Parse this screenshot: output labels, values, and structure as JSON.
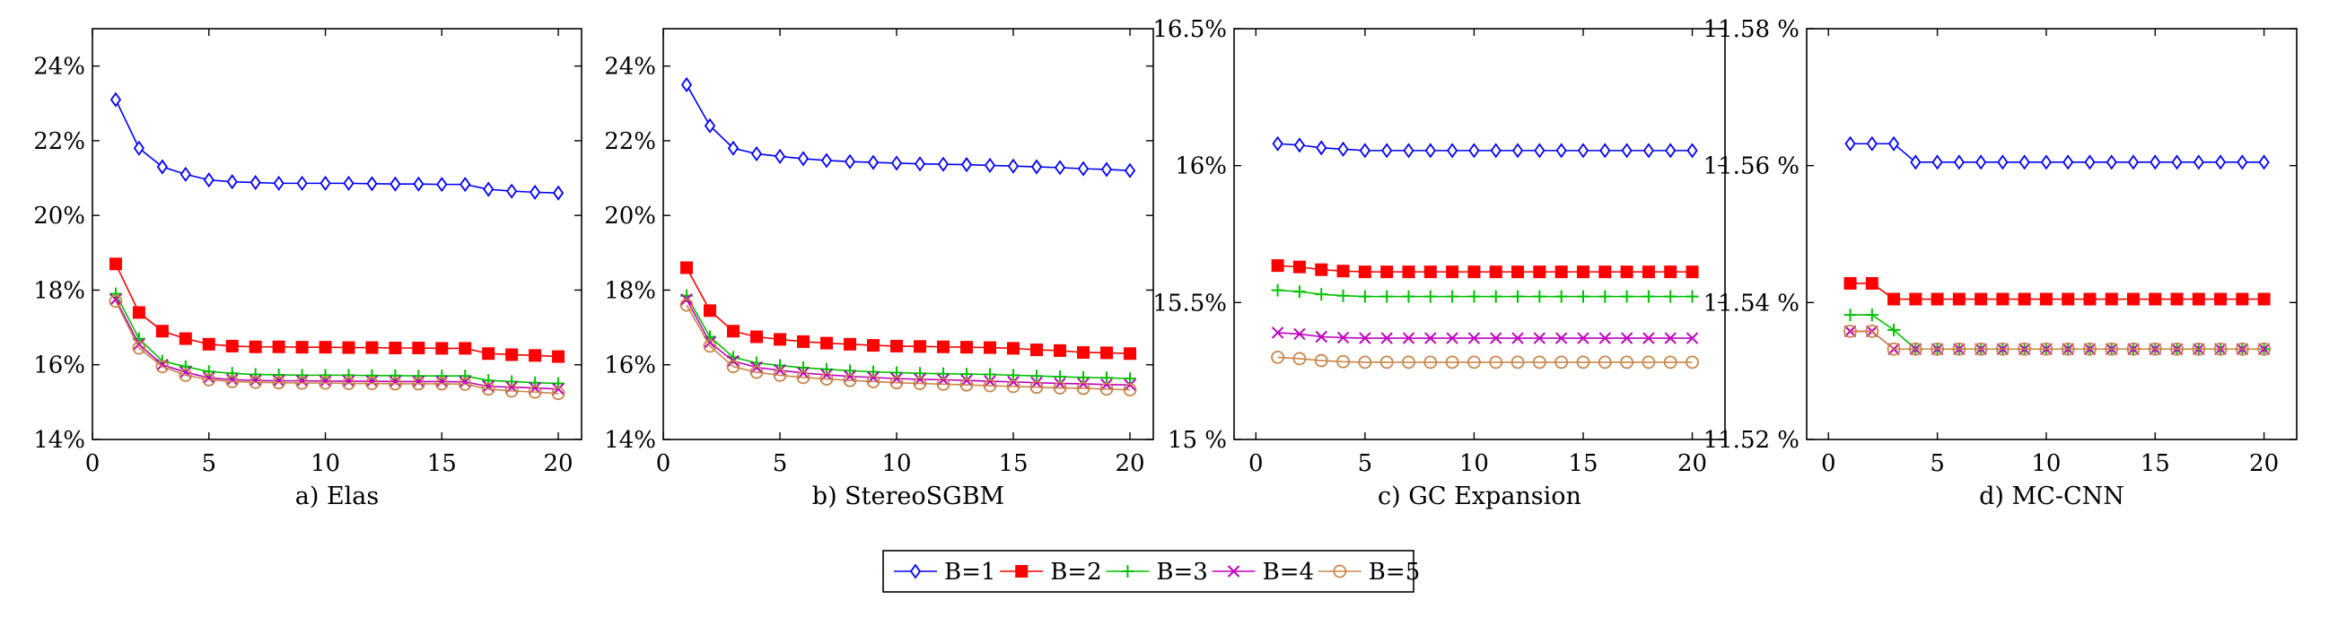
{
  "series_style": [
    {
      "name": "B=1",
      "color": "#0000ff",
      "marker": "diamond"
    },
    {
      "name": "B=2",
      "color": "#ff0000",
      "marker": "square"
    },
    {
      "name": "B=3",
      "color": "#00c000",
      "marker": "plus"
    },
    {
      "name": "B=4",
      "color": "#bf00bf",
      "marker": "cross"
    },
    {
      "name": "B=5",
      "color": "#c8864a",
      "marker": "circle"
    }
  ],
  "chart_data": [
    {
      "type": "line",
      "title": "a) Elas",
      "xlim": [
        0,
        21
      ],
      "xticks": [
        0,
        5,
        10,
        15,
        20
      ],
      "ylim": [
        14,
        25
      ],
      "yticks": [
        14,
        16,
        18,
        20,
        22,
        24
      ],
      "ytick_labels": [
        "14%",
        "16%",
        "18%",
        "20%",
        "22%",
        "24%"
      ],
      "x": [
        1,
        2,
        3,
        4,
        5,
        6,
        7,
        8,
        9,
        10,
        11,
        12,
        13,
        14,
        15,
        16,
        17,
        18,
        19,
        20
      ],
      "series": [
        {
          "name": "B=1",
          "values": [
            23.1,
            21.8,
            21.3,
            21.1,
            20.95,
            20.9,
            20.88,
            20.86,
            20.86,
            20.86,
            20.86,
            20.85,
            20.84,
            20.84,
            20.83,
            20.83,
            20.7,
            20.65,
            20.62,
            20.6
          ]
        },
        {
          "name": "B=2",
          "values": [
            18.7,
            17.4,
            16.9,
            16.7,
            16.55,
            16.5,
            16.48,
            16.48,
            16.47,
            16.47,
            16.46,
            16.46,
            16.45,
            16.45,
            16.44,
            16.44,
            16.3,
            16.27,
            16.25,
            16.22
          ]
        },
        {
          "name": "B=3",
          "values": [
            17.9,
            16.7,
            16.1,
            15.95,
            15.82,
            15.77,
            15.74,
            15.73,
            15.72,
            15.72,
            15.72,
            15.71,
            15.71,
            15.7,
            15.7,
            15.7,
            15.58,
            15.55,
            15.52,
            15.5
          ]
        },
        {
          "name": "B=4",
          "values": [
            17.75,
            16.55,
            16.0,
            15.8,
            15.65,
            15.6,
            15.58,
            15.57,
            15.57,
            15.56,
            15.56,
            15.56,
            15.55,
            15.55,
            15.55,
            15.54,
            15.42,
            15.4,
            15.38,
            15.35
          ]
        },
        {
          "name": "B=5",
          "values": [
            17.7,
            16.45,
            15.95,
            15.72,
            15.6,
            15.55,
            15.53,
            15.52,
            15.51,
            15.51,
            15.5,
            15.5,
            15.49,
            15.49,
            15.49,
            15.48,
            15.35,
            15.3,
            15.27,
            15.23
          ]
        }
      ]
    },
    {
      "type": "line",
      "title": "b) StereoSGBM",
      "xlim": [
        0,
        21
      ],
      "xticks": [
        0,
        5,
        10,
        15,
        20
      ],
      "ylim": [
        14,
        25
      ],
      "yticks": [
        14,
        16,
        18,
        20,
        22,
        24
      ],
      "ytick_labels": [
        "14%",
        "16%",
        "18%",
        "20%",
        "22%",
        "24%"
      ],
      "x": [
        1,
        2,
        3,
        4,
        5,
        6,
        7,
        8,
        9,
        10,
        11,
        12,
        13,
        14,
        15,
        16,
        17,
        18,
        19,
        20
      ],
      "series": [
        {
          "name": "B=1",
          "values": [
            23.5,
            22.4,
            21.8,
            21.65,
            21.58,
            21.52,
            21.47,
            21.44,
            21.42,
            21.4,
            21.38,
            21.37,
            21.36,
            21.34,
            21.32,
            21.3,
            21.28,
            21.25,
            21.23,
            21.2
          ]
        },
        {
          "name": "B=2",
          "values": [
            18.6,
            17.45,
            16.9,
            16.75,
            16.68,
            16.62,
            16.58,
            16.55,
            16.52,
            16.5,
            16.49,
            16.48,
            16.47,
            16.46,
            16.44,
            16.4,
            16.38,
            16.33,
            16.32,
            16.3
          ]
        },
        {
          "name": "B=3",
          "values": [
            17.85,
            16.75,
            16.2,
            16.05,
            15.98,
            15.92,
            15.88,
            15.84,
            15.81,
            15.79,
            15.77,
            15.76,
            15.75,
            15.74,
            15.72,
            15.7,
            15.68,
            15.66,
            15.65,
            15.63
          ]
        },
        {
          "name": "B=4",
          "values": [
            17.75,
            16.6,
            16.1,
            15.93,
            15.85,
            15.78,
            15.73,
            15.69,
            15.66,
            15.63,
            15.61,
            15.6,
            15.58,
            15.56,
            15.54,
            15.52,
            15.5,
            15.49,
            15.47,
            15.46
          ]
        },
        {
          "name": "B=5",
          "values": [
            17.6,
            16.5,
            15.95,
            15.8,
            15.72,
            15.66,
            15.62,
            15.58,
            15.55,
            15.52,
            15.5,
            15.48,
            15.46,
            15.44,
            15.42,
            15.4,
            15.38,
            15.37,
            15.35,
            15.33
          ]
        }
      ]
    },
    {
      "type": "line",
      "title": "c) GC Expansion",
      "xlim": [
        -1,
        21.5
      ],
      "xticks": [
        0,
        5,
        10,
        15,
        20
      ],
      "ylim": [
        15.0,
        16.5
      ],
      "yticks": [
        15.0,
        15.5,
        16.0,
        16.5
      ],
      "ytick_labels": [
        "15 %",
        "15.5%",
        "16%",
        "16.5%"
      ],
      "x": [
        1,
        2,
        3,
        4,
        5,
        6,
        7,
        8,
        9,
        10,
        11,
        12,
        13,
        14,
        15,
        16,
        17,
        18,
        19,
        20
      ],
      "series": [
        {
          "name": "B=1",
          "values": [
            16.08,
            16.075,
            16.065,
            16.06,
            16.055,
            16.055,
            16.055,
            16.055,
            16.055,
            16.055,
            16.055,
            16.055,
            16.055,
            16.055,
            16.055,
            16.055,
            16.055,
            16.055,
            16.055,
            16.055
          ]
        },
        {
          "name": "B=2",
          "values": [
            15.635,
            15.63,
            15.62,
            15.615,
            15.612,
            15.612,
            15.612,
            15.612,
            15.612,
            15.612,
            15.612,
            15.612,
            15.612,
            15.612,
            15.612,
            15.612,
            15.612,
            15.612,
            15.612,
            15.612
          ]
        },
        {
          "name": "B=3",
          "values": [
            15.545,
            15.54,
            15.53,
            15.525,
            15.522,
            15.522,
            15.522,
            15.522,
            15.522,
            15.522,
            15.522,
            15.522,
            15.522,
            15.522,
            15.522,
            15.522,
            15.522,
            15.522,
            15.522,
            15.522
          ]
        },
        {
          "name": "B=4",
          "values": [
            15.39,
            15.385,
            15.375,
            15.372,
            15.37,
            15.37,
            15.37,
            15.37,
            15.37,
            15.37,
            15.37,
            15.37,
            15.37,
            15.37,
            15.37,
            15.37,
            15.37,
            15.37,
            15.37,
            15.37
          ]
        },
        {
          "name": "B=5",
          "values": [
            15.3,
            15.295,
            15.288,
            15.284,
            15.282,
            15.282,
            15.282,
            15.282,
            15.282,
            15.282,
            15.282,
            15.282,
            15.282,
            15.282,
            15.282,
            15.282,
            15.282,
            15.282,
            15.282,
            15.282
          ]
        }
      ]
    },
    {
      "type": "line",
      "title": "d) MC-CNN",
      "xlim": [
        -1,
        21.5
      ],
      "xticks": [
        0,
        5,
        10,
        15,
        20
      ],
      "ylim": [
        11.52,
        11.58
      ],
      "yticks": [
        11.52,
        11.54,
        11.56,
        11.58
      ],
      "ytick_labels": [
        "11.52 %",
        "11.54 %",
        "11.56 %",
        "11.58 %"
      ],
      "x": [
        1,
        2,
        3,
        4,
        5,
        6,
        7,
        8,
        9,
        10,
        11,
        12,
        13,
        14,
        15,
        16,
        17,
        18,
        19,
        20
      ],
      "series": [
        {
          "name": "B=1",
          "values": [
            11.5632,
            11.5632,
            11.5632,
            11.5605,
            11.5605,
            11.5605,
            11.5605,
            11.5605,
            11.5605,
            11.5605,
            11.5605,
            11.5605,
            11.5605,
            11.5605,
            11.5605,
            11.5605,
            11.5605,
            11.5605,
            11.5605,
            11.5605
          ]
        },
        {
          "name": "B=2",
          "values": [
            11.5428,
            11.5428,
            11.5405,
            11.5405,
            11.5405,
            11.5405,
            11.5405,
            11.5405,
            11.5405,
            11.5405,
            11.5405,
            11.5405,
            11.5405,
            11.5405,
            11.5405,
            11.5405,
            11.5405,
            11.5405,
            11.5405,
            11.5405
          ]
        },
        {
          "name": "B=3",
          "values": [
            11.5382,
            11.5382,
            11.536,
            11.5332,
            11.5332,
            11.5332,
            11.5332,
            11.5332,
            11.5332,
            11.5332,
            11.5332,
            11.5332,
            11.5332,
            11.5332,
            11.5332,
            11.5332,
            11.5332,
            11.5332,
            11.5332,
            11.5332
          ]
        },
        {
          "name": "B=4",
          "values": [
            11.5358,
            11.5358,
            11.5332,
            11.5332,
            11.5332,
            11.5332,
            11.5332,
            11.5332,
            11.5332,
            11.5332,
            11.5332,
            11.5332,
            11.5332,
            11.5332,
            11.5332,
            11.5332,
            11.5332,
            11.5332,
            11.5332,
            11.5332
          ]
        },
        {
          "name": "B=5",
          "values": [
            11.5358,
            11.5358,
            11.5332,
            11.5332,
            11.5332,
            11.5332,
            11.5332,
            11.5332,
            11.5332,
            11.5332,
            11.5332,
            11.5332,
            11.5332,
            11.5332,
            11.5332,
            11.5332,
            11.5332,
            11.5332,
            11.5332,
            11.5332
          ]
        }
      ]
    }
  ]
}
